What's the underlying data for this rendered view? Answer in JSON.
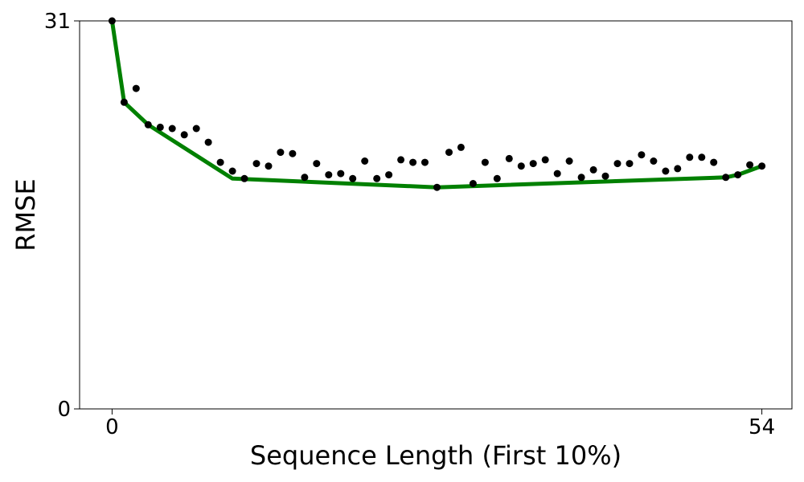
{
  "chart_data": {
    "type": "scatter",
    "xlabel": "Sequence Length (First 10%)",
    "ylabel": "RMSE",
    "xlim": [
      -2.7,
      56.5
    ],
    "ylim": [
      0,
      31
    ],
    "x_ticks": [
      0,
      54
    ],
    "y_ticks": [
      0,
      31
    ],
    "x_tick_labels": [
      "0",
      "54"
    ],
    "y_tick_labels": [
      "0",
      "31"
    ],
    "grid": false,
    "legend": "none",
    "series": [
      {
        "kind": "scatter",
        "color": "#000000",
        "x": [
          0,
          1,
          2,
          3,
          4,
          5,
          6,
          7,
          8,
          9,
          10,
          11,
          12,
          13,
          14,
          15,
          16,
          17,
          18,
          19,
          20,
          21,
          22,
          23,
          24,
          25,
          26,
          27,
          28,
          29,
          30,
          31,
          32,
          33,
          34,
          35,
          36,
          37,
          38,
          39,
          40,
          41,
          42,
          43,
          44,
          45,
          46,
          47,
          48,
          49,
          50,
          51,
          52,
          53,
          54
        ],
        "y": [
          31.0,
          24.5,
          25.6,
          22.7,
          22.5,
          22.4,
          21.9,
          22.4,
          21.3,
          19.7,
          19.0,
          18.4,
          19.6,
          19.4,
          20.5,
          20.4,
          18.5,
          19.6,
          18.7,
          18.8,
          18.4,
          19.8,
          18.4,
          18.7,
          19.9,
          19.7,
          19.7,
          17.7,
          20.5,
          20.9,
          18.0,
          19.7,
          18.4,
          20.0,
          19.4,
          19.6,
          19.9,
          18.8,
          19.8,
          18.5,
          19.1,
          18.6,
          19.6,
          19.6,
          20.3,
          19.8,
          19.0,
          19.2,
          20.1,
          20.1,
          19.7,
          18.5,
          18.7,
          19.5,
          19.4
        ]
      },
      {
        "kind": "line",
        "color": "#008000",
        "x": [
          0,
          1,
          3,
          10,
          27,
          51,
          52,
          54
        ],
        "y": [
          31.0,
          24.5,
          22.7,
          18.4,
          17.7,
          18.5,
          18.7,
          19.4
        ]
      }
    ]
  }
}
